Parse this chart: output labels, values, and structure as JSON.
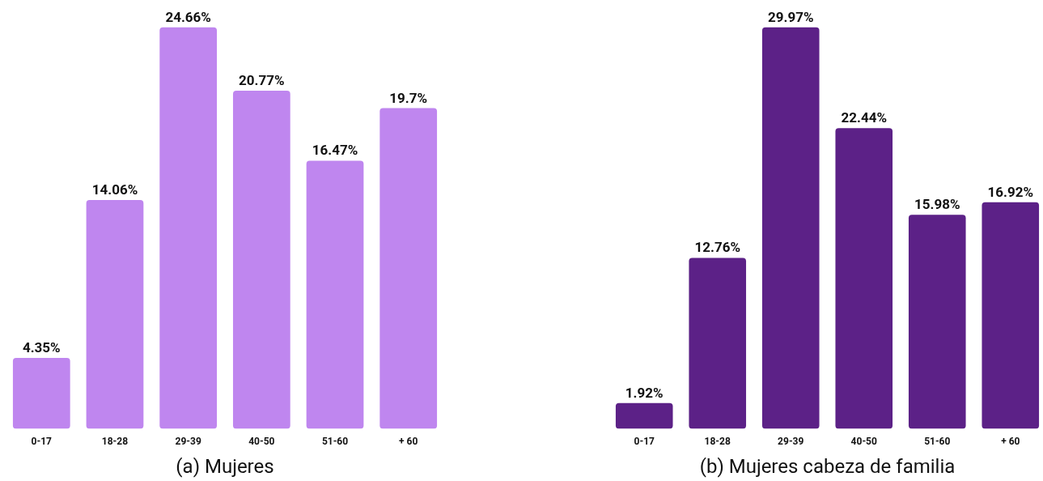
{
  "chart_data": [
    {
      "type": "bar",
      "title": "(a) Mujeres",
      "categories": [
        "0-17",
        "18-28",
        "29-39",
        "40-50",
        "51-60",
        "+ 60"
      ],
      "values": [
        4.35,
        14.06,
        24.66,
        20.77,
        16.47,
        19.7
      ],
      "value_labels": [
        "4.35%",
        "14.06%",
        "24.66%",
        "20.77%",
        "16.47%",
        "19.7%"
      ],
      "color": "#bf86ef",
      "grid": false
    },
    {
      "type": "bar",
      "title": "(b) Mujeres cabeza de familia",
      "categories": [
        "0-17",
        "18-28",
        "29-39",
        "40-50",
        "51-60",
        "+ 60"
      ],
      "values": [
        1.92,
        12.76,
        29.97,
        22.44,
        15.98,
        16.92
      ],
      "value_labels": [
        "1.92%",
        "12.76%",
        "29.97%",
        "22.44%",
        "15.98%",
        "16.92%"
      ],
      "color": "#5c2187",
      "grid": false
    }
  ]
}
